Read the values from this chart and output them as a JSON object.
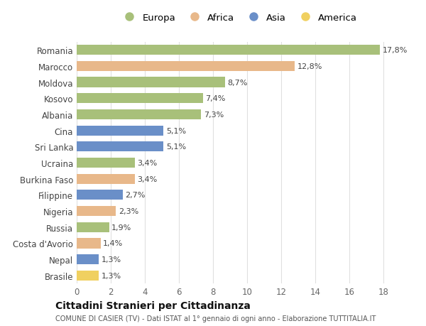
{
  "categories": [
    "Romania",
    "Marocco",
    "Moldova",
    "Kosovo",
    "Albania",
    "Cina",
    "Sri Lanka",
    "Ucraina",
    "Burkina Faso",
    "Filippine",
    "Nigeria",
    "Russia",
    "Costa d'Avorio",
    "Nepal",
    "Brasile"
  ],
  "values": [
    17.8,
    12.8,
    8.7,
    7.4,
    7.3,
    5.1,
    5.1,
    3.4,
    3.4,
    2.7,
    2.3,
    1.9,
    1.4,
    1.3,
    1.3
  ],
  "labels": [
    "17,8%",
    "12,8%",
    "8,7%",
    "7,4%",
    "7,3%",
    "5,1%",
    "5,1%",
    "3,4%",
    "3,4%",
    "2,7%",
    "2,3%",
    "1,9%",
    "1,4%",
    "1,3%",
    "1,3%"
  ],
  "continents": [
    "Europa",
    "Africa",
    "Europa",
    "Europa",
    "Europa",
    "Asia",
    "Asia",
    "Europa",
    "Africa",
    "Asia",
    "Africa",
    "Europa",
    "Africa",
    "Asia",
    "America"
  ],
  "colors": {
    "Europa": "#a8c07a",
    "Africa": "#e8b88a",
    "Asia": "#6a8fc8",
    "America": "#f0d060"
  },
  "legend_order": [
    "Europa",
    "Africa",
    "Asia",
    "America"
  ],
  "title": "Cittadini Stranieri per Cittadinanza",
  "subtitle": "COMUNE DI CASIER (TV) - Dati ISTAT al 1° gennaio di ogni anno - Elaborazione TUTTITALIA.IT",
  "xlim": [
    0,
    19
  ],
  "xticks": [
    0,
    2,
    4,
    6,
    8,
    10,
    12,
    14,
    16,
    18
  ],
  "background_color": "#ffffff",
  "grid_color": "#e0e0e0"
}
